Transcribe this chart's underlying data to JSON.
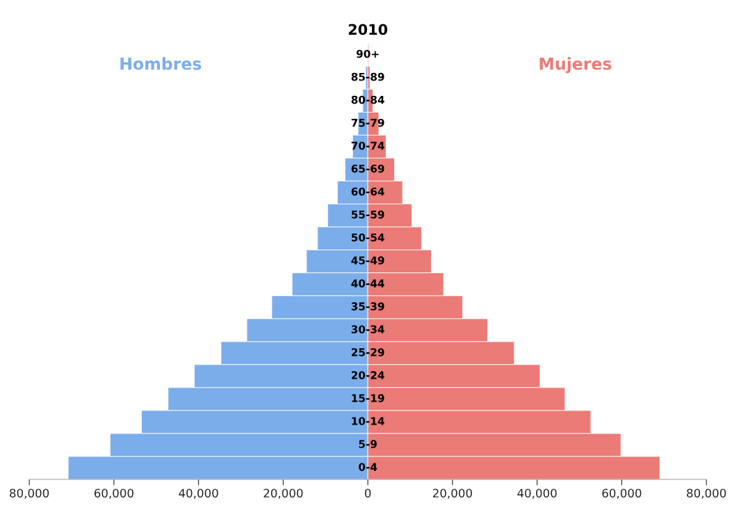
{
  "chart_data": {
    "type": "bar",
    "orientation": "horizontal",
    "stacked": true,
    "title": "2010",
    "categories": [
      "90+",
      "85-89",
      "80-84",
      "75-79",
      "70-74",
      "65-69",
      "60-64",
      "55-59",
      "50-54",
      "45-49",
      "40-44",
      "35-39",
      "30-34",
      "25-29",
      "20-24",
      "15-19",
      "10-14",
      "5-9",
      "0-4"
    ],
    "series": [
      {
        "name": "Hombres",
        "color": "#7badea",
        "values": [
          null,
          -500,
          -1200,
          -2300,
          -3600,
          -5400,
          -7200,
          -9500,
          -11900,
          -14500,
          -17900,
          -22700,
          -28600,
          -34700,
          -41000,
          -47200,
          -53500,
          -60900,
          -70800
        ]
      },
      {
        "name": "Mujeres",
        "color": "#ea7b76",
        "values": [
          200,
          500,
          1200,
          2600,
          4300,
          6300,
          8200,
          10400,
          12700,
          15000,
          17900,
          22400,
          28300,
          34600,
          40700,
          46600,
          52700,
          59800,
          69000
        ]
      }
    ],
    "xlim": [
      -80000,
      80000
    ],
    "xticks": [
      {
        "value": -80000,
        "label": "80,000"
      },
      {
        "value": -60000,
        "label": "60,000"
      },
      {
        "value": -40000,
        "label": "40,000"
      },
      {
        "value": -20000,
        "label": "20,000"
      },
      0,
      {
        "value": 20000,
        "label": "20,000"
      },
      {
        "value": 40000,
        "label": "40,000"
      },
      {
        "value": 60000,
        "label": "60,000"
      },
      {
        "value": 80000,
        "label": "80,000"
      }
    ],
    "grid": false,
    "legend": false
  }
}
